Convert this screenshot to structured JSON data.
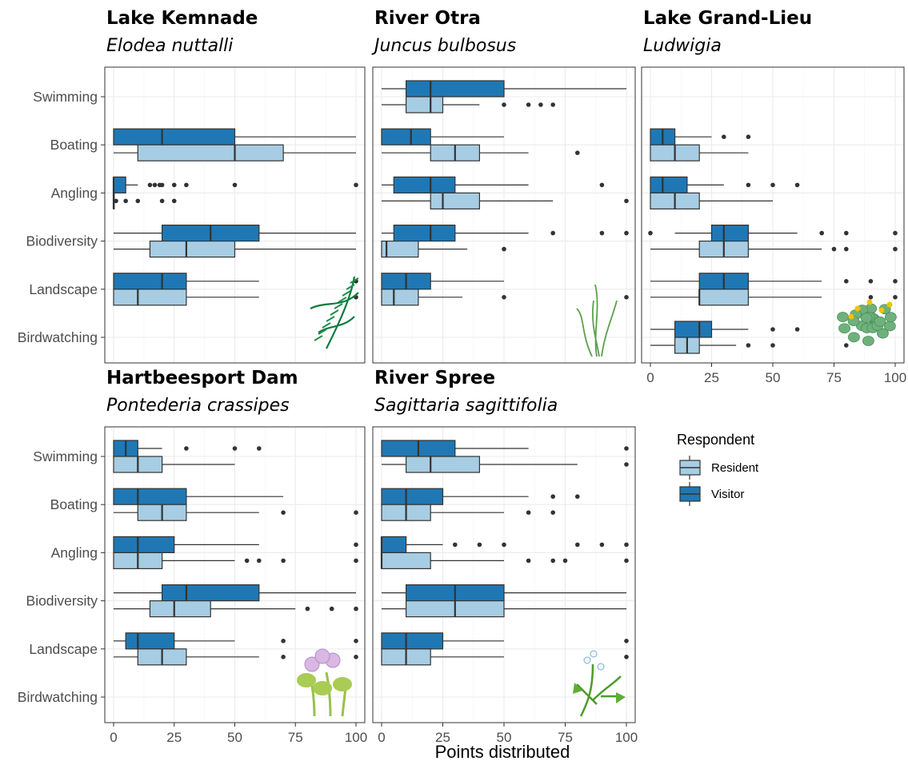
{
  "chart_data": {
    "type": "boxplot",
    "xlabel": "Points distributed",
    "ylabel": "",
    "xlim": [
      0,
      100
    ],
    "xticks": [
      "0",
      "25",
      "50",
      "75",
      "100"
    ],
    "categories": [
      "Swimming",
      "Boating",
      "Angling",
      "Biodiversity",
      "Landscape",
      "Birdwatching"
    ],
    "legend": {
      "title": "Respondent",
      "position": "right",
      "entries": [
        {
          "name": "Resident",
          "color": "#a6cde3"
        },
        {
          "name": "Visitor",
          "color": "#1f78b4"
        }
      ]
    },
    "grid": true,
    "panels": [
      {
        "title": "Lake Kemnade",
        "subtitle": "Elodea nuttalli",
        "icon": "elodea-plant-icon",
        "boxes": [
          {
            "activity": "Boating",
            "group": "Visitor",
            "lw": 0,
            "q1": 0,
            "med": 20,
            "q3": 50,
            "uw": 100,
            "out": []
          },
          {
            "activity": "Boating",
            "group": "Resident",
            "lw": 0,
            "q1": 10,
            "med": 50,
            "q3": 70,
            "uw": 100,
            "out": []
          },
          {
            "activity": "Angling",
            "group": "Visitor",
            "lw": 0,
            "q1": 0,
            "med": 0,
            "q3": 5,
            "uw": 10,
            "out": [
              15,
              17,
              19,
              20,
              25,
              30,
              50,
              100
            ]
          },
          {
            "activity": "Angling",
            "group": "Resident",
            "lw": 0,
            "q1": 0,
            "med": 0,
            "q3": 0,
            "uw": 0,
            "out": [
              1,
              5,
              10,
              20,
              25
            ]
          },
          {
            "activity": "Biodiversity",
            "group": "Visitor",
            "lw": 0,
            "q1": 20,
            "med": 40,
            "q3": 60,
            "uw": 100,
            "out": []
          },
          {
            "activity": "Biodiversity",
            "group": "Resident",
            "lw": 0,
            "q1": 15,
            "med": 30,
            "q3": 50,
            "uw": 100,
            "out": []
          },
          {
            "activity": "Landscape",
            "group": "Visitor",
            "lw": 0,
            "q1": 0,
            "med": 20,
            "q3": 30,
            "uw": 60,
            "out": [
              100
            ]
          },
          {
            "activity": "Landscape",
            "group": "Resident",
            "lw": 0,
            "q1": 0,
            "med": 10,
            "q3": 30,
            "uw": 60,
            "out": [
              100
            ]
          }
        ]
      },
      {
        "title": "River Otra",
        "subtitle": "Juncus bulbosus",
        "icon": "juncus-plant-icon",
        "boxes": [
          {
            "activity": "Swimming",
            "group": "Visitor",
            "lw": 0,
            "q1": 10,
            "med": 20,
            "q3": 50,
            "uw": 100,
            "out": []
          },
          {
            "activity": "Swimming",
            "group": "Resident",
            "lw": 0,
            "q1": 10,
            "med": 20,
            "q3": 25,
            "uw": 40,
            "out": [
              50,
              60,
              65,
              70
            ]
          },
          {
            "activity": "Boating",
            "group": "Visitor",
            "lw": 0,
            "q1": 0,
            "med": 12,
            "q3": 20,
            "uw": 50,
            "out": []
          },
          {
            "activity": "Boating",
            "group": "Resident",
            "lw": 0,
            "q1": 20,
            "med": 30,
            "q3": 40,
            "uw": 60,
            "out": [
              80
            ]
          },
          {
            "activity": "Angling",
            "group": "Visitor",
            "lw": 0,
            "q1": 5,
            "med": 20,
            "q3": 30,
            "uw": 60,
            "out": [
              90
            ]
          },
          {
            "activity": "Angling",
            "group": "Resident",
            "lw": 0,
            "q1": 20,
            "med": 25,
            "q3": 40,
            "uw": 70,
            "out": [
              100
            ]
          },
          {
            "activity": "Biodiversity",
            "group": "Visitor",
            "lw": 0,
            "q1": 5,
            "med": 20,
            "q3": 30,
            "uw": 60,
            "out": [
              70,
              90,
              100
            ]
          },
          {
            "activity": "Biodiversity",
            "group": "Resident",
            "lw": 0,
            "q1": 0,
            "med": 2,
            "q3": 15,
            "uw": 35,
            "out": [
              50
            ]
          },
          {
            "activity": "Landscape",
            "group": "Visitor",
            "lw": 0,
            "q1": 0,
            "med": 10,
            "q3": 20,
            "uw": 50,
            "out": []
          },
          {
            "activity": "Landscape",
            "group": "Resident",
            "lw": 0,
            "q1": 0,
            "med": 5,
            "q3": 15,
            "uw": 33,
            "out": [
              50,
              100
            ]
          }
        ]
      },
      {
        "title": "Lake Grand-Lieu",
        "subtitle": "Ludwigia",
        "icon": "ludwigia-plant-icon",
        "boxes": [
          {
            "activity": "Boating",
            "group": "Visitor",
            "lw": 0,
            "q1": 0,
            "med": 5,
            "q3": 10,
            "uw": 25,
            "out": [
              30,
              40
            ]
          },
          {
            "activity": "Boating",
            "group": "Resident",
            "lw": 0,
            "q1": 0,
            "med": 10,
            "q3": 20,
            "uw": 40,
            "out": []
          },
          {
            "activity": "Angling",
            "group": "Visitor",
            "lw": 0,
            "q1": 0,
            "med": 5,
            "q3": 15,
            "uw": 30,
            "out": [
              40,
              50,
              60
            ]
          },
          {
            "activity": "Angling",
            "group": "Resident",
            "lw": 0,
            "q1": 0,
            "med": 10,
            "q3": 20,
            "uw": 50,
            "out": []
          },
          {
            "activity": "Biodiversity",
            "group": "Visitor",
            "lw": 10,
            "q1": 25,
            "med": 30,
            "q3": 40,
            "uw": 60,
            "out": [
              0,
              70,
              80,
              100
            ]
          },
          {
            "activity": "Biodiversity",
            "group": "Resident",
            "lw": 0,
            "q1": 20,
            "med": 30,
            "q3": 40,
            "uw": 70,
            "out": [
              75,
              80,
              100
            ]
          },
          {
            "activity": "Landscape",
            "group": "Visitor",
            "lw": 0,
            "q1": 20,
            "med": 30,
            "q3": 40,
            "uw": 70,
            "out": [
              80,
              90,
              100
            ]
          },
          {
            "activity": "Landscape",
            "group": "Resident",
            "lw": 0,
            "q1": 20,
            "med": 20,
            "q3": 40,
            "uw": 70,
            "out": [
              90,
              100
            ]
          },
          {
            "activity": "Birdwatching",
            "group": "Visitor",
            "lw": 0,
            "q1": 10,
            "med": 20,
            "q3": 25,
            "uw": 40,
            "out": [
              50,
              60
            ]
          },
          {
            "activity": "Birdwatching",
            "group": "Resident",
            "lw": 0,
            "q1": 10,
            "med": 15,
            "q3": 20,
            "uw": 35,
            "out": [
              40,
              50,
              80
            ]
          }
        ]
      },
      {
        "title": "Hartbeesport Dam",
        "subtitle": "Pontederia crassipes",
        "icon": "pontederia-plant-icon",
        "boxes": [
          {
            "activity": "Swimming",
            "group": "Visitor",
            "lw": 0,
            "q1": 0,
            "med": 5,
            "q3": 10,
            "uw": 20,
            "out": [
              30,
              50,
              60
            ]
          },
          {
            "activity": "Swimming",
            "group": "Resident",
            "lw": 0,
            "q1": 0,
            "med": 10,
            "q3": 20,
            "uw": 50,
            "out": []
          },
          {
            "activity": "Boating",
            "group": "Visitor",
            "lw": 0,
            "q1": 0,
            "med": 10,
            "q3": 30,
            "uw": 70,
            "out": []
          },
          {
            "activity": "Boating",
            "group": "Resident",
            "lw": 0,
            "q1": 10,
            "med": 20,
            "q3": 30,
            "uw": 60,
            "out": [
              70,
              100
            ]
          },
          {
            "activity": "Angling",
            "group": "Visitor",
            "lw": 0,
            "q1": 0,
            "med": 10,
            "q3": 25,
            "uw": 60,
            "out": [
              100
            ]
          },
          {
            "activity": "Angling",
            "group": "Resident",
            "lw": 0,
            "q1": 0,
            "med": 10,
            "q3": 20,
            "uw": 50,
            "out": [
              55,
              60,
              70,
              100
            ]
          },
          {
            "activity": "Biodiversity",
            "group": "Visitor",
            "lw": 0,
            "q1": 20,
            "med": 30,
            "q3": 60,
            "uw": 100,
            "out": []
          },
          {
            "activity": "Biodiversity",
            "group": "Resident",
            "lw": 0,
            "q1": 15,
            "med": 25,
            "q3": 40,
            "uw": 75,
            "out": [
              80,
              90,
              100
            ]
          },
          {
            "activity": "Landscape",
            "group": "Visitor",
            "lw": 0,
            "q1": 5,
            "med": 10,
            "q3": 25,
            "uw": 50,
            "out": [
              70,
              100
            ]
          },
          {
            "activity": "Landscape",
            "group": "Resident",
            "lw": 0,
            "q1": 10,
            "med": 20,
            "q3": 30,
            "uw": 60,
            "out": [
              70,
              100
            ]
          }
        ]
      },
      {
        "title": "River Spree",
        "subtitle": "Sagittaria sagittifolia",
        "icon": "sagittaria-plant-icon",
        "boxes": [
          {
            "activity": "Swimming",
            "group": "Visitor",
            "lw": 0,
            "q1": 0,
            "med": 15,
            "q3": 30,
            "uw": 60,
            "out": [
              100
            ]
          },
          {
            "activity": "Swimming",
            "group": "Resident",
            "lw": 0,
            "q1": 10,
            "med": 20,
            "q3": 40,
            "uw": 80,
            "out": [
              100
            ]
          },
          {
            "activity": "Boating",
            "group": "Visitor",
            "lw": 0,
            "q1": 0,
            "med": 10,
            "q3": 25,
            "uw": 60,
            "out": [
              70,
              80
            ]
          },
          {
            "activity": "Boating",
            "group": "Resident",
            "lw": 0,
            "q1": 0,
            "med": 10,
            "q3": 20,
            "uw": 50,
            "out": [
              60,
              70
            ]
          },
          {
            "activity": "Angling",
            "group": "Visitor",
            "lw": 0,
            "q1": 0,
            "med": 0,
            "q3": 10,
            "uw": 25,
            "out": [
              30,
              40,
              50,
              80,
              90,
              100
            ]
          },
          {
            "activity": "Angling",
            "group": "Resident",
            "lw": 0,
            "q1": 0,
            "med": 0,
            "q3": 20,
            "uw": 50,
            "out": [
              60,
              70,
              75,
              100
            ]
          },
          {
            "activity": "Biodiversity",
            "group": "Visitor",
            "lw": 0,
            "q1": 10,
            "med": 30,
            "q3": 50,
            "uw": 100,
            "out": []
          },
          {
            "activity": "Biodiversity",
            "group": "Resident",
            "lw": 0,
            "q1": 10,
            "med": 30,
            "q3": 50,
            "uw": 100,
            "out": []
          },
          {
            "activity": "Landscape",
            "group": "Visitor",
            "lw": 0,
            "q1": 0,
            "med": 10,
            "q3": 25,
            "uw": 50,
            "out": [
              100
            ]
          },
          {
            "activity": "Landscape",
            "group": "Resident",
            "lw": 0,
            "q1": 0,
            "med": 10,
            "q3": 20,
            "uw": 50,
            "out": [
              100
            ]
          }
        ]
      }
    ]
  }
}
